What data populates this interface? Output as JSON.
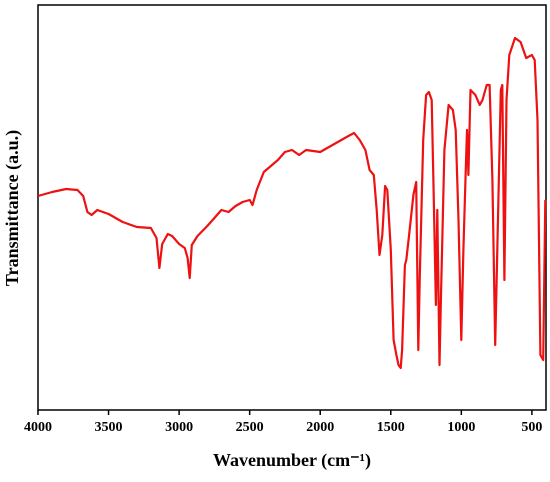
{
  "chart_data": {
    "type": "line",
    "xlabel": "Wavenumber (cm⁻¹)",
    "ylabel": "Transmittance (a.u.)",
    "xlim": [
      4000,
      400
    ],
    "xticks": [
      4000,
      3500,
      3000,
      2500,
      2000,
      1500,
      1000,
      500
    ],
    "ylim": [
      0,
      405
    ],
    "series": [
      {
        "color": "#ee1111",
        "x": [
          4000,
          3900,
          3800,
          3720,
          3680,
          3650,
          3620,
          3580,
          3500,
          3400,
          3300,
          3200,
          3160,
          3140,
          3120,
          3080,
          3050,
          3000,
          2960,
          2940,
          2925,
          2910,
          2870,
          2800,
          2750,
          2700,
          2650,
          2600,
          2550,
          2500,
          2480,
          2450,
          2400,
          2300,
          2250,
          2200,
          2150,
          2100,
          2000,
          1900,
          1800,
          1760,
          1720,
          1680,
          1650,
          1620,
          1600,
          1580,
          1560,
          1540,
          1525,
          1500,
          1480,
          1460,
          1445,
          1430,
          1420,
          1400,
          1390,
          1370,
          1340,
          1320,
          1305,
          1295,
          1270,
          1250,
          1230,
          1210,
          1195,
          1180,
          1170,
          1155,
          1145,
          1120,
          1090,
          1060,
          1040,
          1020,
          1000,
          985,
          970,
          960,
          950,
          935,
          900,
          870,
          850,
          820,
          800,
          780,
          760,
          745,
          720,
          710,
          695,
          680,
          660,
          620,
          580,
          540,
          500,
          480,
          460,
          440,
          420,
          405
        ],
        "values": [
          214,
          218,
          221,
          220,
          214,
          198,
          195,
          200,
          196,
          188,
          183,
          182,
          172,
          142,
          166,
          176,
          174,
          166,
          162,
          152,
          132,
          165,
          174,
          184,
          192,
          200,
          198,
          204,
          208,
          210,
          205,
          220,
          238,
          250,
          258,
          260,
          255,
          260,
          258,
          266,
          274,
          277,
          270,
          260,
          240,
          235,
          200,
          155,
          175,
          224,
          220,
          160,
          70,
          55,
          45,
          42,
          60,
          145,
          150,
          175,
          215,
          228,
          60,
          130,
          270,
          315,
          318,
          310,
          210,
          105,
          200,
          45,
          110,
          260,
          305,
          300,
          280,
          190,
          70,
          160,
          235,
          280,
          235,
          320,
          315,
          305,
          310,
          325,
          325,
          230,
          65,
          160,
          320,
          325,
          130,
          310,
          355,
          372,
          368,
          352,
          355,
          350,
          290,
          55,
          50,
          210
        ]
      }
    ]
  }
}
